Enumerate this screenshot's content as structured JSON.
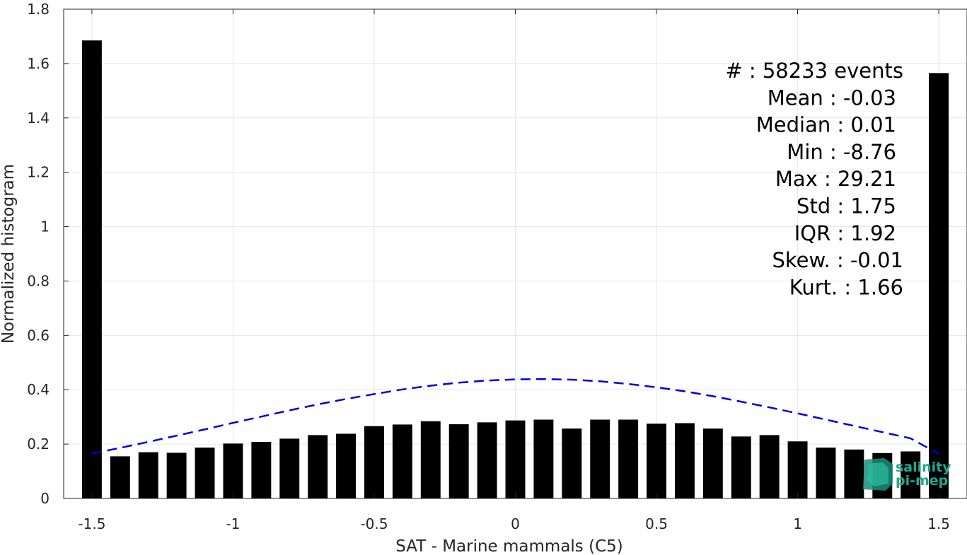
{
  "chart_data": {
    "type": "bar",
    "xlabel": "SAT - Marine mammals (C5)",
    "ylabel": "Normalized histogram",
    "xlim": [
      -1.6,
      1.6
    ],
    "ylim": [
      0,
      1.8
    ],
    "xticks": [
      -1.5,
      -1,
      -0.5,
      0,
      0.5,
      1,
      1.5
    ],
    "xtick_labels": [
      "-1.5",
      "-1",
      "-0.5",
      "0",
      "0.5",
      "1",
      "1.5"
    ],
    "yticks": [
      0,
      0.2,
      0.4,
      0.6,
      0.8,
      1,
      1.2,
      1.4,
      1.6,
      1.8
    ],
    "ytick_labels": [
      "0",
      "0.2",
      "0.4",
      "0.6",
      "0.8",
      "1",
      "1.2",
      "1.4",
      "1.6",
      "1.8"
    ],
    "grid": true,
    "bar_width": 0.07,
    "bar_color": "#000000",
    "x": [
      -1.5,
      -1.4,
      -1.3,
      -1.2,
      -1.1,
      -1.0,
      -0.9,
      -0.8,
      -0.7,
      -0.6,
      -0.5,
      -0.4,
      -0.3,
      -0.2,
      -0.1,
      0.0,
      0.1,
      0.2,
      0.3,
      0.4,
      0.5,
      0.6,
      0.7,
      0.8,
      0.9,
      1.0,
      1.1,
      1.2,
      1.3,
      1.4,
      1.5
    ],
    "values": [
      1.685,
      0.155,
      0.17,
      0.168,
      0.187,
      0.202,
      0.208,
      0.22,
      0.233,
      0.238,
      0.266,
      0.272,
      0.284,
      0.273,
      0.28,
      0.287,
      0.29,
      0.257,
      0.29,
      0.29,
      0.275,
      0.277,
      0.257,
      0.228,
      0.233,
      0.21,
      0.187,
      0.18,
      0.167,
      0.173,
      1.565
    ],
    "fit_curve": {
      "style": "dashed",
      "color": "#0000e0",
      "x": [
        -1.5,
        -1.4,
        -1.3,
        -1.2,
        -1.1,
        -1.0,
        -0.9,
        -0.8,
        -0.7,
        -0.6,
        -0.5,
        -0.4,
        -0.3,
        -0.2,
        -0.1,
        0.0,
        0.1,
        0.2,
        0.3,
        0.4,
        0.5,
        0.6,
        0.7,
        0.8,
        0.9,
        1.0,
        1.1,
        1.2,
        1.3,
        1.4,
        1.5
      ],
      "y": [
        0.165,
        0.186,
        0.208,
        0.231,
        0.254,
        0.278,
        0.301,
        0.324,
        0.346,
        0.366,
        0.384,
        0.401,
        0.415,
        0.426,
        0.434,
        0.438,
        0.439,
        0.437,
        0.431,
        0.421,
        0.409,
        0.394,
        0.376,
        0.356,
        0.335,
        0.313,
        0.29,
        0.267,
        0.244,
        0.221,
        0.164
      ]
    },
    "annotations": [
      "#  : 58233 events",
      "Mean : -0.03",
      "Median : 0.01",
      "Min : -8.76",
      "Max : 29.21",
      "Std : 1.75",
      "IQR : 1.92",
      "Skew. : -0.01",
      "Kurt. : 1.66"
    ]
  },
  "logo": {
    "line1": "salinity",
    "line2": "pi-mep",
    "color": "#1fa98f"
  }
}
